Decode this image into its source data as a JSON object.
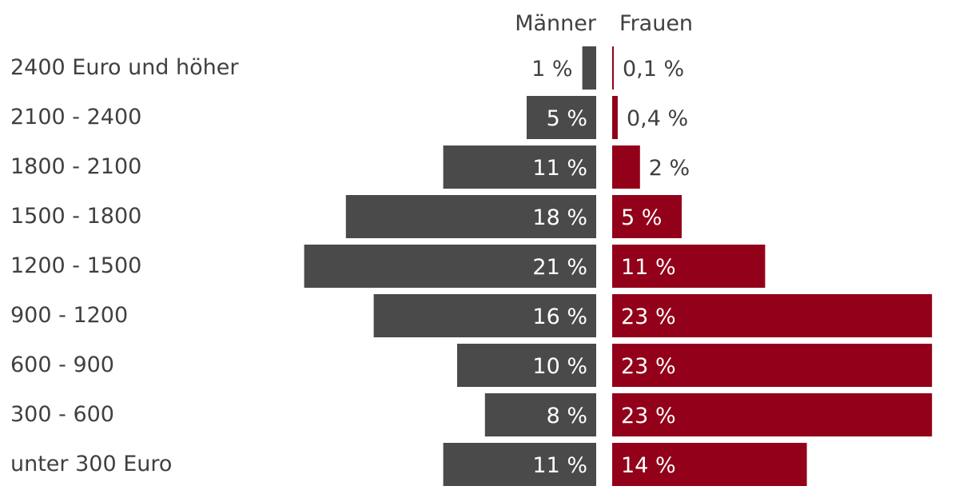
{
  "chart_data": {
    "type": "bar",
    "orientation": "horizontal",
    "layout": "butterfly",
    "categories": [
      "2400 Euro und höher",
      "2100 - 2400",
      "1800 - 2100",
      "1500 - 1800",
      "1200 - 1500",
      "900 - 1200",
      "600 - 900",
      "300 - 600",
      "unter 300 Euro"
    ],
    "series": [
      {
        "name": "Männer",
        "color": "#4a4a4a",
        "values": [
          1,
          5,
          11,
          18,
          21,
          16,
          10,
          8,
          11
        ],
        "labels": [
          "1 %",
          "5 %",
          "11 %",
          "18 %",
          "21 %",
          "16 %",
          "10 %",
          "8 %",
          "11 %"
        ]
      },
      {
        "name": "Frauen",
        "color": "#920019",
        "values": [
          0.1,
          0.4,
          2,
          5,
          11,
          23,
          23,
          23,
          14
        ],
        "labels": [
          "0,1 %",
          "0,4 %",
          "2 %",
          "5 %",
          "11 %",
          "23 %",
          "23 %",
          "23 %",
          "14 %"
        ]
      }
    ]
  }
}
